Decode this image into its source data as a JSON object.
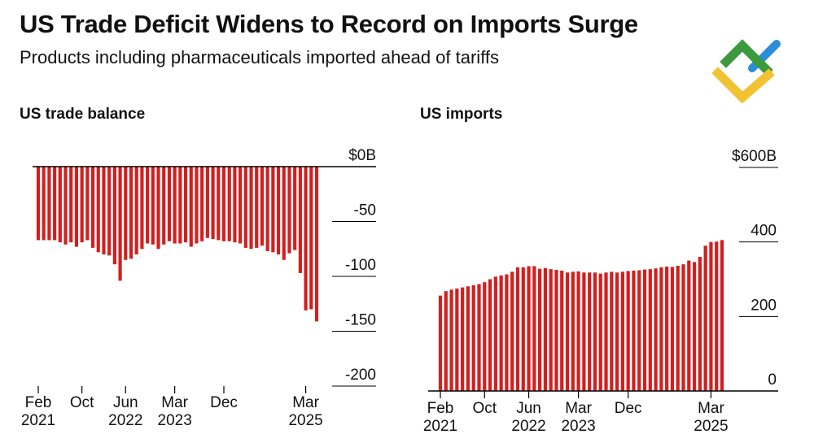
{
  "header": {
    "title": "US Trade Deficit Widens to Record on Imports Surge",
    "subtitle": "Products including pharmaceuticals imported ahead of tariffs"
  },
  "logo": {
    "icon": "brand-logo-icon",
    "colors": {
      "green": "#3c9a3e",
      "blue": "#2a8ed8",
      "yellow": "#f2c233"
    }
  },
  "colors": {
    "bar": "#d21f1f",
    "axis": "#000000",
    "text": "#111111"
  },
  "chart_data": [
    {
      "type": "bar",
      "title": "US trade balance",
      "unit": "$B",
      "ylim": [
        -200,
        0
      ],
      "y_ticks": [
        {
          "value": 0,
          "label": "$0B"
        },
        {
          "value": -50,
          "label": "-50"
        },
        {
          "value": -100,
          "label": "-100"
        },
        {
          "value": -150,
          "label": "-150"
        },
        {
          "value": -200,
          "label": "-200"
        }
      ],
      "x_ticks": [
        {
          "index": 0,
          "label1": "Feb",
          "label2": "2021"
        },
        {
          "index": 8,
          "label1": "Oct",
          "label2": ""
        },
        {
          "index": 16,
          "label1": "Jun",
          "label2": "2022"
        },
        {
          "index": 25,
          "label1": "Mar",
          "label2": "2023"
        },
        {
          "index": 34,
          "label1": "Dec",
          "label2": ""
        },
        {
          "index": 49,
          "label1": "Mar",
          "label2": "2025"
        }
      ],
      "values": [
        -67,
        -67,
        -67,
        -67,
        -69,
        -71,
        -69,
        -73,
        -69,
        -67,
        -74,
        -78,
        -80,
        -81,
        -89,
        -104,
        -85,
        -84,
        -80,
        -75,
        -70,
        -71,
        -75,
        -71,
        -68,
        -70,
        -70,
        -69,
        -73,
        -70,
        -68,
        -65,
        -66,
        -67,
        -68,
        -68,
        -69,
        -70,
        -74,
        -75,
        -74,
        -72,
        -77,
        -78,
        -80,
        -85,
        -79,
        -76,
        -97,
        -131,
        -130,
        -141
      ]
    },
    {
      "type": "bar",
      "title": "US imports",
      "unit": "$B",
      "ylim": [
        0,
        600
      ],
      "y_ticks": [
        {
          "value": 600,
          "label": "$600B"
        },
        {
          "value": 400,
          "label": "400"
        },
        {
          "value": 200,
          "label": "200"
        },
        {
          "value": 0,
          "label": "0"
        }
      ],
      "x_ticks": [
        {
          "index": 0,
          "label1": "Feb",
          "label2": "2021"
        },
        {
          "index": 8,
          "label1": "Oct",
          "label2": ""
        },
        {
          "index": 16,
          "label1": "Jun",
          "label2": "2022"
        },
        {
          "index": 25,
          "label1": "Mar",
          "label2": "2023"
        },
        {
          "index": 34,
          "label1": "Dec",
          "label2": ""
        },
        {
          "index": 49,
          "label1": "Mar",
          "label2": "2025"
        }
      ],
      "values": [
        256,
        268,
        272,
        275,
        278,
        281,
        284,
        287,
        292,
        300,
        307,
        310,
        313,
        320,
        332,
        332,
        335,
        335,
        328,
        330,
        327,
        325,
        323,
        318,
        320,
        321,
        318,
        318,
        318,
        315,
        318,
        320,
        318,
        320,
        322,
        323,
        324,
        326,
        327,
        329,
        332,
        334,
        333,
        336,
        340,
        350,
        346,
        360,
        390,
        400,
        401,
        405
      ]
    }
  ]
}
